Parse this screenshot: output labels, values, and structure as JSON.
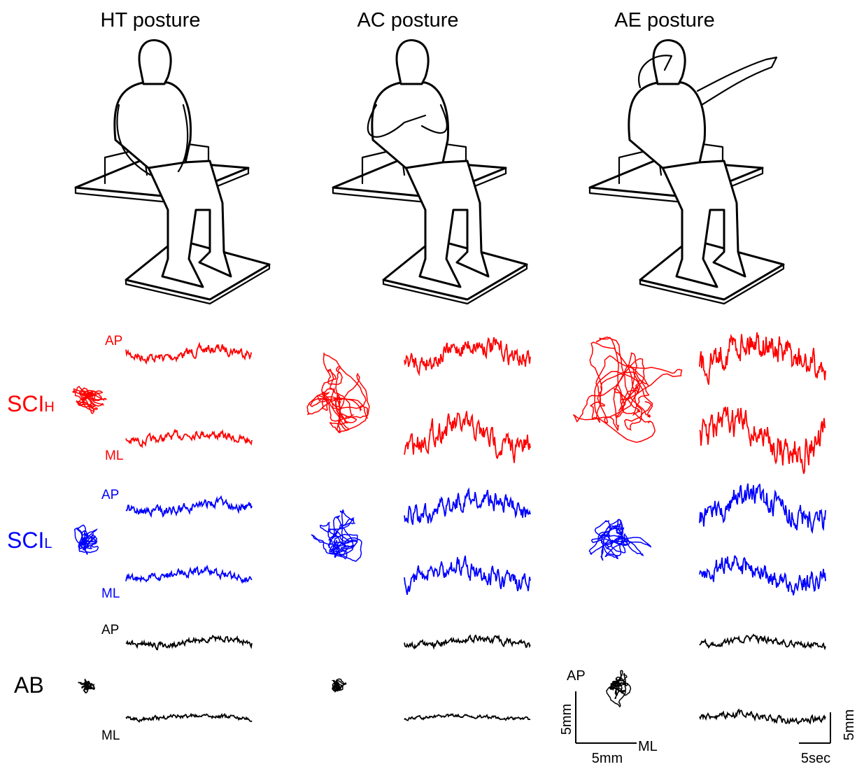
{
  "columns": [
    {
      "title": "HT posture"
    },
    {
      "title": "AC posture"
    },
    {
      "title": "AE posture"
    }
  ],
  "rows": [
    {
      "label": "SCI",
      "sub": "H",
      "color": "#ff0000",
      "ap": "AP",
      "ml": "ML"
    },
    {
      "label": "SCI",
      "sub": "L",
      "color": "#0000ff",
      "ap": "AP",
      "ml": "ML"
    },
    {
      "label": "AB",
      "color": "#000000",
      "ap": "AP",
      "ml": "ML"
    }
  ],
  "scale_bars": {
    "cop": {
      "y_label": "AP",
      "x_label": "ML",
      "vertical": "5mm",
      "horizontal": "5mm"
    },
    "time": {
      "horizontal": "5sec",
      "vertical": "5mm"
    }
  }
}
